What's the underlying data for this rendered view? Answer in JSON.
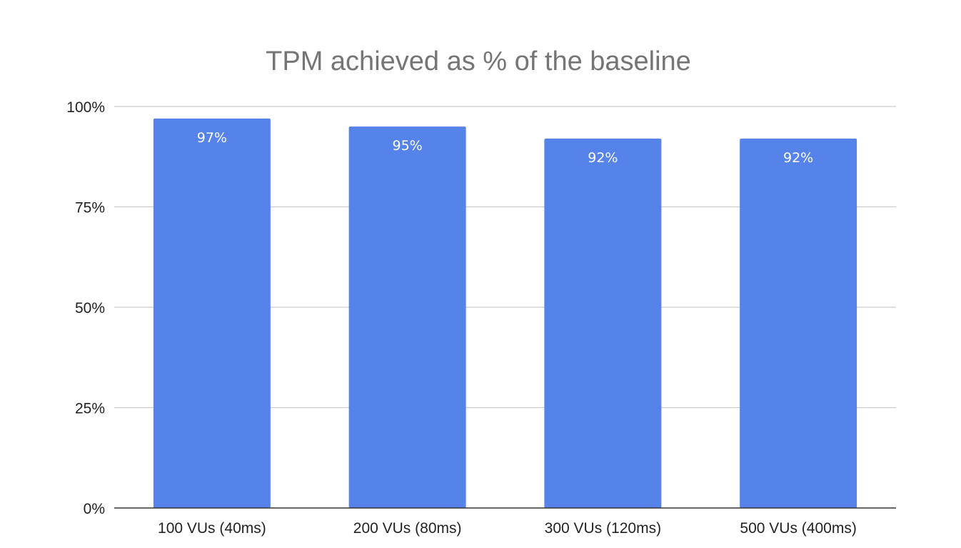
{
  "chart_data": {
    "type": "bar",
    "title": "TPM achieved as % of the baseline",
    "xlabel": "",
    "ylabel": "",
    "categories": [
      "100 VUs (40ms)",
      "200 VUs (80ms)",
      "300 VUs (120ms)",
      "500 VUs (400ms)"
    ],
    "values": [
      97,
      95,
      92,
      92
    ],
    "data_labels": [
      "97%",
      "95%",
      "92%",
      "92%"
    ],
    "ylim": [
      0,
      100
    ],
    "y_ticks": [
      0,
      25,
      50,
      75,
      100
    ],
    "y_tick_labels": [
      "0%",
      "25%",
      "50%",
      "75%",
      "100%"
    ],
    "grid": true,
    "legend": "none",
    "bar_color": "#5683ea"
  }
}
